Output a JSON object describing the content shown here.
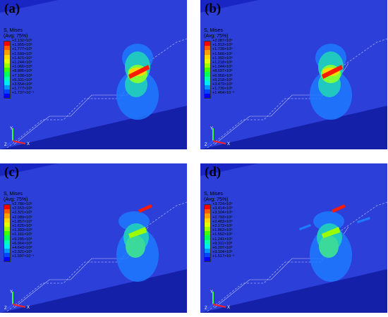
{
  "panels": [
    {
      "label": "(a)",
      "legend": {
        "title": "S, Mises",
        "subtitle": "(Avg: 75%)",
        "values": [
          "+2.132×10⁹",
          "+1.955×10⁹",
          "+1.777×10⁹",
          "+1.599×10⁹",
          "+1.421×10⁹",
          "+1.244×10⁹",
          "+1.066×10⁹",
          "+8.886×10⁸",
          "+7.108×10⁸",
          "+5.331×10⁸",
          "+3.554×10⁸",
          "+1.777×10⁸",
          "+1.737×10⁻⁵"
        ]
      }
    },
    {
      "label": "(b)",
      "legend": {
        "title": "S, Mises",
        "subtitle": "(Avg: 75%)",
        "values": [
          "+2.087×10⁹",
          "+1.913×10⁹",
          "+1.739×10⁹",
          "+1.566×10⁹",
          "+1.392×10⁹",
          "+1.218×10⁹",
          "+1.044×10⁹",
          "+8.697×10⁸",
          "+6.958×10⁸",
          "+5.218×10⁸",
          "+3.479×10⁸",
          "+1.739×10⁸",
          "+1.464×10⁻⁵"
        ]
      }
    },
    {
      "label": "(c)",
      "legend": {
        "title": "S, Mises",
        "subtitle": "(Avg: 75%)",
        "values": [
          "+2.786×10⁹",
          "+2.553×10⁹",
          "+2.321×10⁹",
          "+2.089×10⁹",
          "+1.857×10⁹",
          "+1.625×10⁹",
          "+1.393×10⁹",
          "+1.161×10⁹",
          "+9.285×10⁸",
          "+6.964×10⁸",
          "+4.643×10⁸",
          "+2.321×10⁸",
          "+1.597×10⁻⁵"
        ]
      }
    },
    {
      "label": "(d)",
      "legend": {
        "title": "S, Mises",
        "subtitle": "(Avg: 75%)",
        "values": [
          "+3.724×10⁹",
          "+3.414×10⁹",
          "+3.104×10⁹",
          "+2.793×10⁹",
          "+2.483×10⁹",
          "+2.172×10⁹",
          "+1.862×10⁹",
          "+1.552×10⁹",
          "+1.241×10⁹",
          "+9.311×10⁸",
          "+6.207×10⁸",
          "+3.104×10⁸",
          "+1.517×10⁻⁵"
        ]
      }
    }
  ],
  "colors": {
    "scale": [
      "#ff0000",
      "#ff5a00",
      "#ff9e00",
      "#ffd800",
      "#e6ff00",
      "#9bff00",
      "#3dff00",
      "#00ff5a",
      "#00ffb4",
      "#00e6ff",
      "#0096ff",
      "#0046ff",
      "#0000ff"
    ],
    "background": "#1a26c4",
    "surface": "#2c3fd8"
  },
  "triad": {
    "x": "X",
    "y": "Y",
    "z": "Z"
  }
}
